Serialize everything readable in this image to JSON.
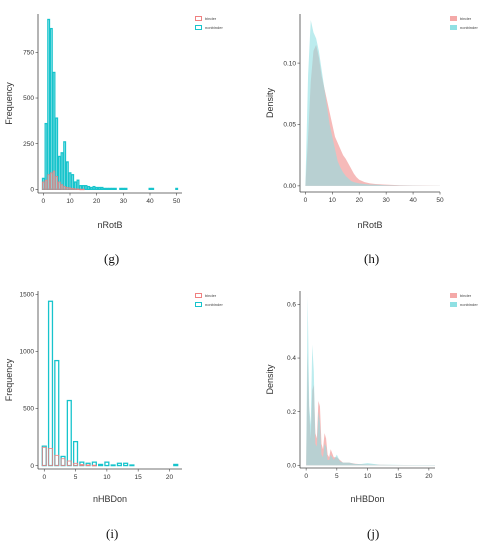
{
  "colors": {
    "binder": "#f08080",
    "binder_fill": "#f4a9a8",
    "nonbinder": "#17c4cc",
    "nonbinder_fill": "#8fe0e3",
    "axis": "#444444",
    "text": "#333333"
  },
  "chart_data": [
    {
      "id": "g",
      "caption": "(g)",
      "type": "bar",
      "xlabel": "nRotB",
      "ylabel": "Frequency",
      "xlim": [
        -2,
        52
      ],
      "ylim": [
        -20,
        960
      ],
      "xticks": [
        0,
        10,
        20,
        30,
        40,
        50
      ],
      "yticks": [
        0,
        250,
        500,
        750
      ],
      "legend": [
        "binder",
        "nonbinder"
      ],
      "legend_placement": "top-right",
      "series": [
        {
          "name": "nonbinder",
          "x": [
            0,
            1,
            2,
            3,
            4,
            5,
            6,
            7,
            8,
            9,
            10,
            11,
            12,
            13,
            14,
            15,
            16,
            17,
            18,
            19,
            20,
            21,
            22,
            23,
            24,
            25,
            26,
            27,
            28,
            29,
            30,
            31,
            32,
            33,
            34,
            35,
            36,
            37,
            38,
            39,
            40,
            41,
            42,
            43,
            44,
            45,
            46,
            47,
            48,
            49,
            50
          ],
          "values": [
            60,
            360,
            930,
            880,
            640,
            390,
            180,
            200,
            260,
            150,
            90,
            80,
            40,
            50,
            20,
            20,
            20,
            15,
            10,
            15,
            10,
            10,
            10,
            5,
            5,
            5,
            5,
            5,
            0,
            5,
            5,
            5,
            0,
            0,
            0,
            0,
            0,
            0,
            0,
            0,
            5,
            5,
            0,
            0,
            0,
            0,
            0,
            0,
            0,
            0,
            5
          ]
        },
        {
          "name": "binder",
          "x": [
            0,
            1,
            2,
            3,
            4,
            5,
            6,
            7,
            8,
            9,
            10,
            11,
            12,
            13,
            14,
            15
          ],
          "values": [
            40,
            50,
            80,
            90,
            100,
            70,
            40,
            25,
            15,
            10,
            8,
            5,
            3,
            2,
            1,
            1
          ]
        }
      ]
    },
    {
      "id": "h",
      "caption": "(h)",
      "type": "area",
      "xlabel": "nRotB",
      "ylabel": "Density",
      "xlim": [
        -2,
        50
      ],
      "ylim": [
        -0.005,
        0.14
      ],
      "xticks": [
        0,
        10,
        20,
        30,
        40,
        50
      ],
      "yticks": [
        0.0,
        0.05,
        0.1
      ],
      "ytick_labels": [
        "0.00",
        "0.05",
        "0.10"
      ],
      "legend": [
        "binder",
        "nonbinder"
      ],
      "legend_placement": "top-right",
      "series": [
        {
          "name": "binder",
          "x": [
            0,
            1,
            2,
            3,
            4,
            5,
            6,
            7,
            8,
            9,
            10,
            11,
            12,
            13,
            14,
            15,
            16,
            17,
            18,
            19,
            20,
            22,
            24,
            26,
            30,
            35,
            40,
            45,
            50
          ],
          "values": [
            0.0,
            0.04,
            0.085,
            0.11,
            0.115,
            0.105,
            0.09,
            0.08,
            0.07,
            0.06,
            0.05,
            0.04,
            0.035,
            0.03,
            0.025,
            0.022,
            0.018,
            0.014,
            0.01,
            0.007,
            0.005,
            0.003,
            0.002,
            0.0015,
            0.001,
            0.0005,
            0.0003,
            0.0002,
            0.0001
          ]
        },
        {
          "name": "nonbinder",
          "x": [
            0,
            1,
            2,
            3,
            4,
            5,
            6,
            7,
            8,
            9,
            10,
            11,
            12,
            13,
            14,
            15,
            16,
            17,
            18,
            20,
            22,
            24,
            26,
            30,
            35,
            40,
            45,
            50
          ],
          "values": [
            0.0,
            0.09,
            0.135,
            0.125,
            0.12,
            0.11,
            0.095,
            0.08,
            0.065,
            0.05,
            0.04,
            0.03,
            0.02,
            0.015,
            0.011,
            0.008,
            0.006,
            0.004,
            0.003,
            0.002,
            0.0015,
            0.001,
            0.001,
            0.0005,
            0.0003,
            0.0002,
            0.0001,
            0.0001
          ]
        }
      ]
    },
    {
      "id": "i",
      "caption": "(i)",
      "type": "bar",
      "xlabel": "nHBDon",
      "ylabel": "Frequency",
      "xlim": [
        -1,
        22
      ],
      "ylim": [
        -30,
        1530
      ],
      "xticks": [
        0,
        5,
        10,
        15,
        20
      ],
      "yticks": [
        0,
        500,
        1000,
        1500
      ],
      "legend": [
        "binder",
        "nonbinder"
      ],
      "legend_placement": "top-right",
      "series": [
        {
          "name": "nonbinder",
          "x": [
            0,
            1,
            2,
            3,
            4,
            5,
            6,
            7,
            8,
            9,
            10,
            11,
            12,
            13,
            14,
            15,
            16,
            17,
            18,
            19,
            20,
            21
          ],
          "values": [
            170,
            1440,
            920,
            80,
            570,
            210,
            30,
            20,
            30,
            10,
            30,
            5,
            20,
            20,
            5,
            0,
            0,
            0,
            0,
            0,
            0,
            10
          ]
        },
        {
          "name": "binder",
          "x": [
            0,
            1,
            2,
            3,
            4,
            5,
            6,
            7,
            8
          ],
          "values": [
            160,
            150,
            90,
            60,
            40,
            20,
            10,
            5,
            3
          ]
        }
      ]
    },
    {
      "id": "j",
      "caption": "(j)",
      "type": "area",
      "xlabel": "nHBDon",
      "ylabel": "Density",
      "xlim": [
        -1,
        21
      ],
      "ylim": [
        -0.01,
        0.65
      ],
      "xticks": [
        0,
        5,
        10,
        15,
        20
      ],
      "yticks": [
        0.0,
        0.2,
        0.4,
        0.6
      ],
      "ytick_labels": [
        "0.0",
        "0.2",
        "0.4",
        "0.6"
      ],
      "legend": [
        "binder",
        "nonbinder"
      ],
      "legend_placement": "top-right",
      "series": [
        {
          "name": "binder",
          "x": [
            0,
            0.25,
            0.5,
            0.75,
            1,
            1.25,
            1.5,
            1.75,
            2,
            2.25,
            2.5,
            2.75,
            3,
            3.25,
            3.5,
            3.75,
            4,
            4.5,
            5,
            5.5,
            6,
            7,
            8,
            9,
            10,
            12,
            14,
            16,
            18,
            20,
            21
          ],
          "values": [
            0.0,
            0.42,
            0.2,
            0.1,
            0.28,
            0.3,
            0.12,
            0.1,
            0.24,
            0.22,
            0.08,
            0.06,
            0.12,
            0.1,
            0.04,
            0.03,
            0.06,
            0.03,
            0.03,
            0.02,
            0.01,
            0.01,
            0.006,
            0.004,
            0.003,
            0.002,
            0.001,
            0.001,
            0.0005,
            0.0005,
            0.0005
          ]
        },
        {
          "name": "nonbinder",
          "x": [
            0,
            0.25,
            0.5,
            0.75,
            1,
            1.25,
            1.5,
            1.75,
            2,
            2.25,
            2.5,
            2.75,
            3,
            3.25,
            3.5,
            3.75,
            4,
            4.5,
            5,
            5.5,
            6,
            7,
            8,
            9,
            10,
            12,
            14,
            16,
            18,
            20,
            21
          ],
          "values": [
            0.0,
            0.63,
            0.22,
            0.15,
            0.45,
            0.35,
            0.08,
            0.07,
            0.2,
            0.16,
            0.04,
            0.03,
            0.08,
            0.07,
            0.02,
            0.02,
            0.04,
            0.02,
            0.04,
            0.015,
            0.01,
            0.01,
            0.005,
            0.005,
            0.008,
            0.002,
            0.002,
            0.001,
            0.001,
            0.001,
            0.001
          ]
        }
      ]
    }
  ]
}
